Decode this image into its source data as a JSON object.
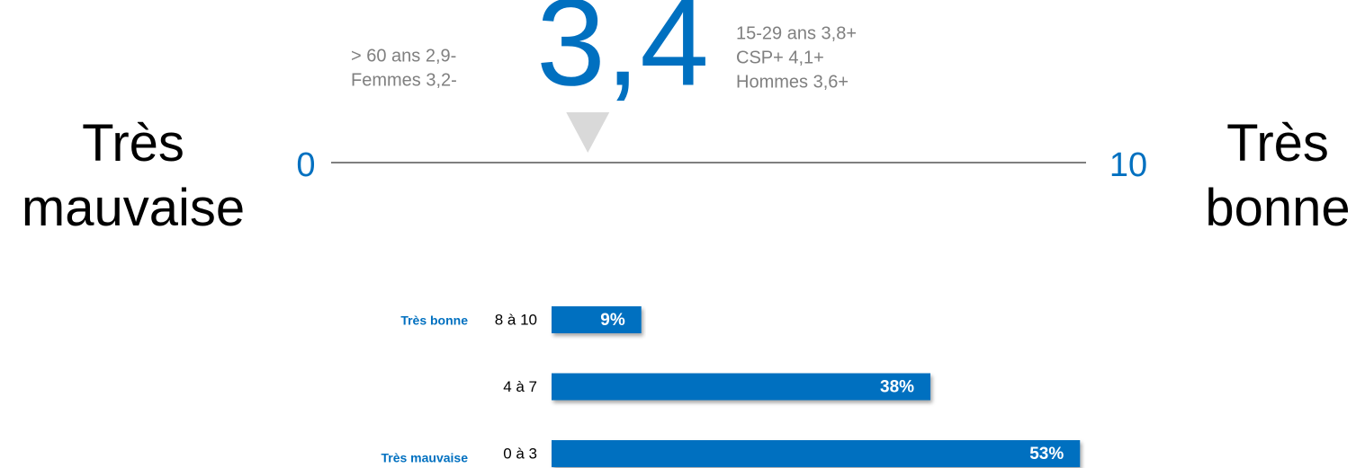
{
  "scale": {
    "min": 0,
    "max": 10,
    "min_label": "Très mauvaise",
    "max_label": "Très bonne",
    "score": 3.4,
    "score_label": "3,4",
    "left_notes": [
      "> 60 ans 2,9-",
      "Femmes 3,2-"
    ],
    "right_notes": [
      "15-29 ans 3,8+",
      "CSP+  4,1+",
      "Hommes 3,6+"
    ]
  },
  "chart_data": {
    "type": "bar",
    "orientation": "horizontal",
    "categories": [
      "8 à 10",
      "4 à 7",
      "0 à 3"
    ],
    "groups": [
      "Très bonne",
      null,
      "Très mauvaise"
    ],
    "values": [
      9,
      38,
      53
    ],
    "value_labels": [
      "9%",
      "38%",
      "53%"
    ],
    "color": "#0070c0"
  }
}
